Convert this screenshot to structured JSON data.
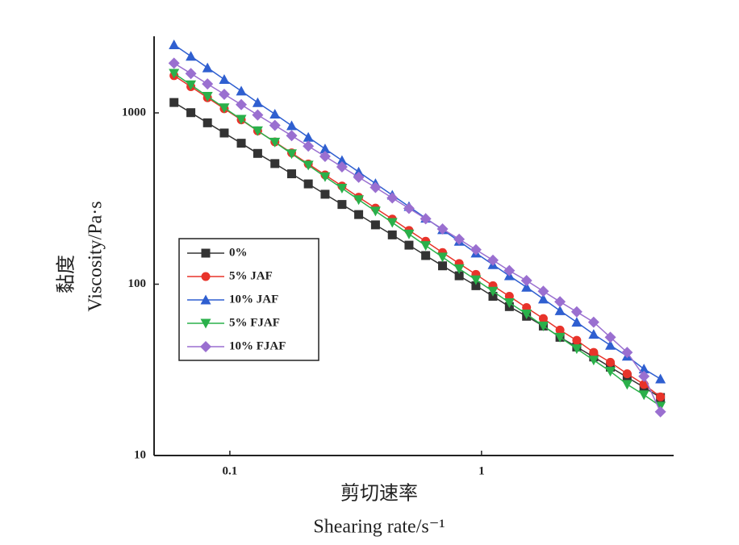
{
  "chart_data": {
    "type": "line",
    "y_label_cn": "黏度",
    "y_label": "Viscosity/Pa·s",
    "x_label_cn": "剪切速率",
    "x_label": "Shearing rate/s⁻¹",
    "log_x": true,
    "log_y": true,
    "legend": "upper-left",
    "xlim": [
      0.05,
      5.8
    ],
    "ylim": [
      10,
      2800
    ],
    "xticks": [
      0.1,
      1
    ],
    "yticks": [
      10,
      100,
      1000
    ],
    "x": [
      0.06,
      0.07,
      0.0815,
      0.095,
      0.111,
      0.129,
      0.151,
      0.176,
      0.205,
      0.239,
      0.279,
      0.325,
      0.379,
      0.442,
      0.515,
      0.6,
      0.7,
      0.815,
      0.95,
      1.11,
      1.29,
      1.51,
      1.76,
      2.05,
      2.39,
      2.79,
      3.25,
      3.79,
      4.42,
      5.14
    ],
    "series": [
      {
        "name": "0%",
        "color": "#333333",
        "marker": "square",
        "values": [
          1150,
          1003,
          875,
          763,
          665,
          580,
          506,
          441,
          385,
          335,
          292,
          255,
          222,
          194,
          169,
          147,
          128,
          112,
          98,
          85,
          74,
          65,
          57,
          49,
          43,
          37.6,
          32.8,
          28.6,
          25,
          21.8
        ]
      },
      {
        "name": "5% JAF",
        "color": "#e8332a",
        "marker": "circle",
        "values": [
          1650,
          1422,
          1226,
          1057,
          911,
          785,
          677,
          584,
          503,
          434,
          374,
          322,
          278,
          240,
          206,
          178,
          153,
          132,
          114,
          98,
          85,
          73,
          63,
          54,
          47,
          40,
          35,
          30,
          26,
          22
        ]
      },
      {
        "name": "10% JAF",
        "color": "#2f5fd0",
        "marker": "triangle-up",
        "values": [
          2500,
          2140,
          1832,
          1568,
          1342,
          1149,
          984,
          842,
          721,
          617,
          528,
          452,
          387,
          331,
          284,
          243,
          208,
          178,
          152,
          130,
          112,
          96,
          82,
          70,
          60,
          51,
          44,
          38,
          32,
          28
        ]
      },
      {
        "name": "5% FJAF",
        "color": "#2ab04a",
        "marker": "triangle-down",
        "values": [
          1700,
          1457,
          1249,
          1070,
          917,
          786,
          674,
          577,
          495,
          424,
          363,
          311,
          267,
          229,
          196,
          168,
          144,
          123,
          106,
          91,
          78,
          67,
          57,
          49,
          42,
          36,
          31,
          26,
          22.6,
          19.4
        ]
      },
      {
        "name": "10% FJAF",
        "color": "#9a6fd0",
        "marker": "diamond",
        "values": [
          1950,
          1697,
          1476,
          1284,
          1117,
          972,
          846,
          736,
          640,
          557,
          484,
          421,
          367,
          319,
          277,
          241,
          210,
          183,
          159,
          138,
          120,
          105,
          91,
          79,
          69,
          60,
          49,
          40,
          29,
          18
        ]
      }
    ]
  }
}
